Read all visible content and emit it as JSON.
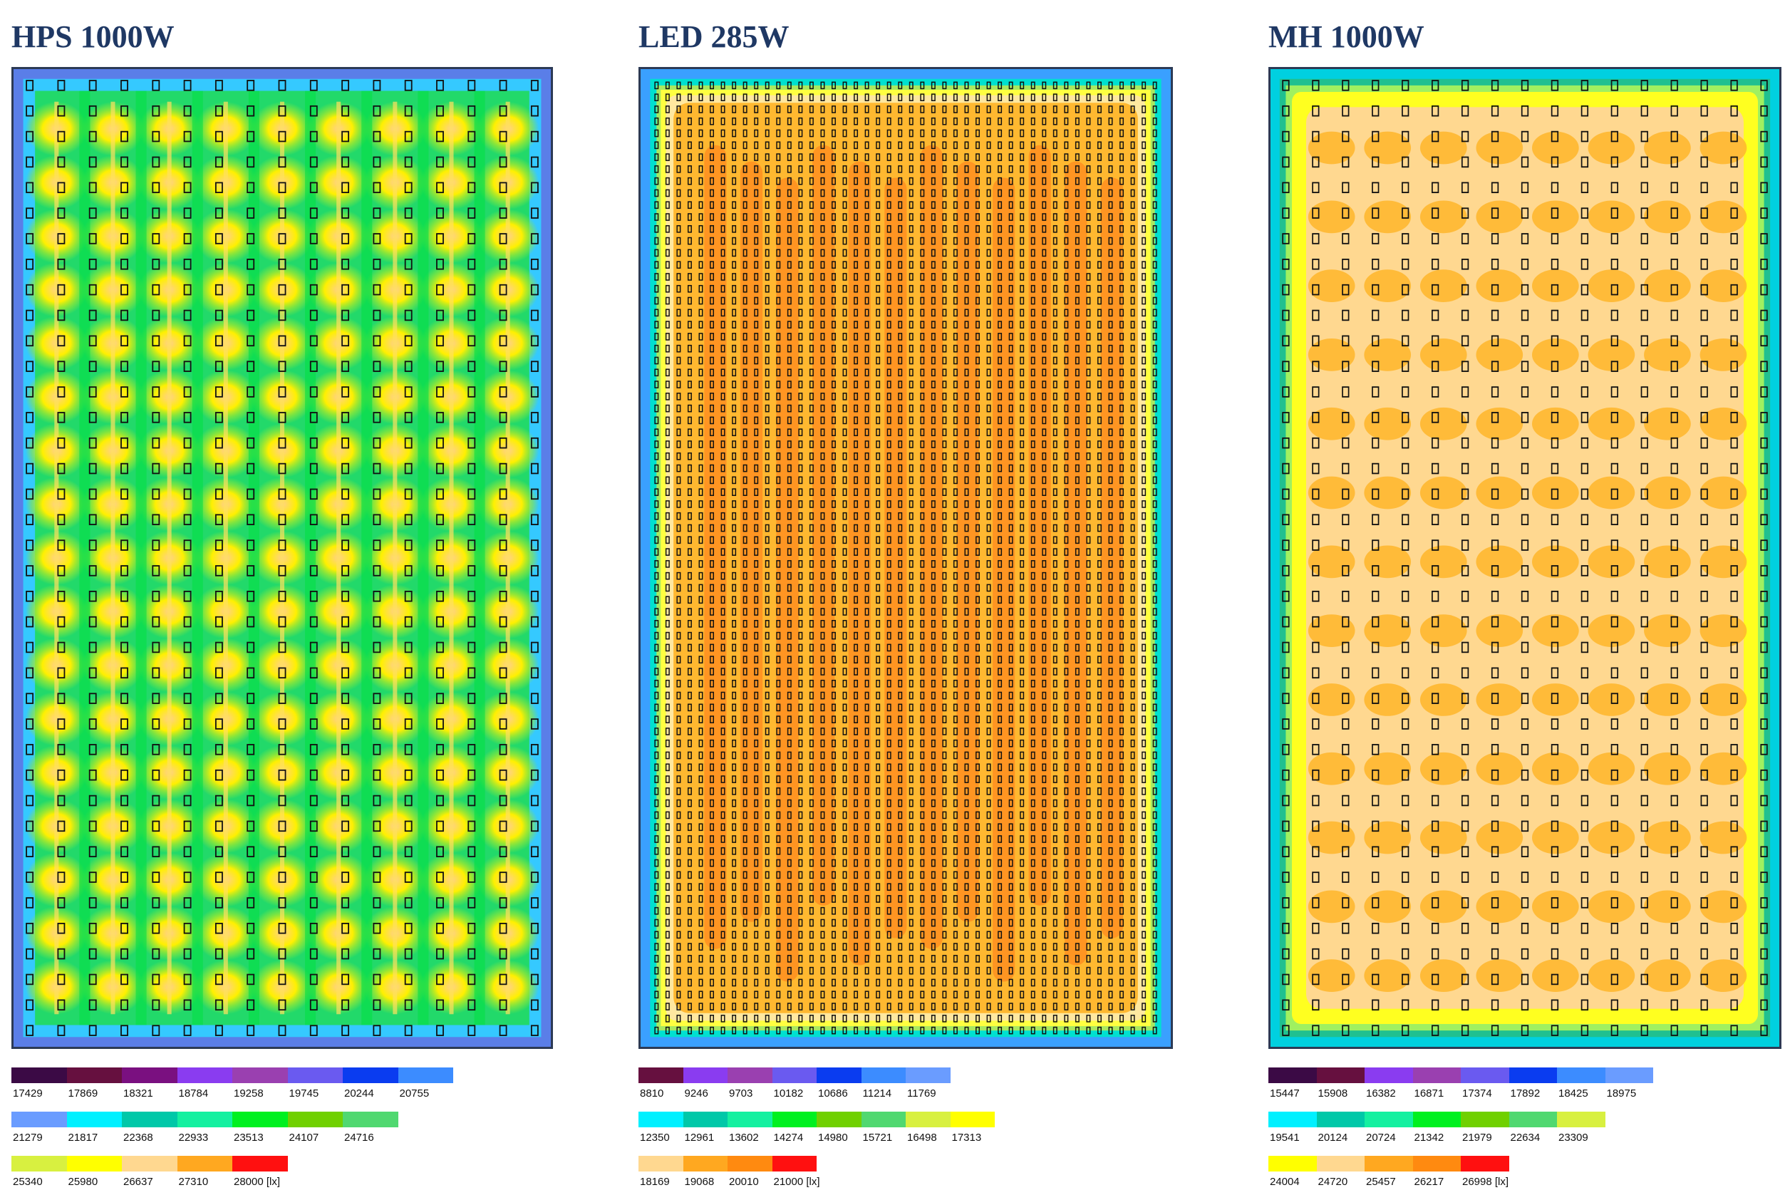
{
  "panels": [
    {
      "id": "hps",
      "title": "HPS 1000W",
      "pattern": "grid-spots",
      "colors": {
        "edge": "#5a7ee8",
        "edge2": "#35c9ff",
        "base": "#22d96a",
        "mid": "#8ee83a",
        "hot": "#fff000",
        "peak": "#ffd08a"
      },
      "legend_rows": [
        [
          {
            "color": "#3b0a45",
            "label": "17429"
          },
          {
            "color": "#66103f",
            "label": "17869"
          },
          {
            "color": "#7a1080",
            "label": "18321"
          },
          {
            "color": "#8a3cf0",
            "label": "18784"
          },
          {
            "color": "#9a40b0",
            "label": "19258"
          },
          {
            "color": "#6a5af0",
            "label": "19745"
          },
          {
            "color": "#0a3cf0",
            "label": "20244"
          },
          {
            "color": "#3c8cff",
            "label": "20755"
          }
        ],
        [
          {
            "color": "#6a9cff",
            "label": "21279"
          },
          {
            "color": "#00f0ff",
            "label": "21817"
          },
          {
            "color": "#00c8a8",
            "label": "22368"
          },
          {
            "color": "#14f0a0",
            "label": "22933"
          },
          {
            "color": "#00f020",
            "label": "23513"
          },
          {
            "color": "#70d000",
            "label": "24107"
          },
          {
            "color": "#50d870",
            "label": "24716"
          }
        ],
        [
          {
            "color": "#d8f040",
            "label": "25340"
          },
          {
            "color": "#ffff00",
            "label": "25980"
          },
          {
            "color": "#ffd890",
            "label": "26637"
          },
          {
            "color": "#ffa820",
            "label": "27310"
          },
          {
            "color": "#ff1010",
            "label": "28000 [lx]"
          }
        ]
      ]
    },
    {
      "id": "led",
      "title": "LED 285W",
      "pattern": "uniform-orange",
      "colors": {
        "edge": "#3aa0ff",
        "edge2": "#00e0d0",
        "base": "#ffb830",
        "mid": "#ff9e30",
        "hot": "#ff8a1e",
        "peak": "#ffe8a0"
      },
      "legend_rows": [
        [
          {
            "color": "#66103f",
            "label": "8810"
          },
          {
            "color": "#8a3cf0",
            "label": "9246"
          },
          {
            "color": "#9a40b0",
            "label": "9703"
          },
          {
            "color": "#6a5af0",
            "label": "10182"
          },
          {
            "color": "#0a3cf0",
            "label": "10686"
          },
          {
            "color": "#3c8cff",
            "label": "11214"
          },
          {
            "color": "#6a9cff",
            "label": "11769"
          }
        ],
        [
          {
            "color": "#00f0ff",
            "label": "12350"
          },
          {
            "color": "#00c8a8",
            "label": "12961"
          },
          {
            "color": "#14f0a0",
            "label": "13602"
          },
          {
            "color": "#00f020",
            "label": "14274"
          },
          {
            "color": "#70d000",
            "label": "14980"
          },
          {
            "color": "#50d870",
            "label": "15721"
          },
          {
            "color": "#d8f040",
            "label": "16498"
          },
          {
            "color": "#ffff00",
            "label": "17313"
          }
        ],
        [
          {
            "color": "#ffd890",
            "label": "18169"
          },
          {
            "color": "#ffa820",
            "label": "19068"
          },
          {
            "color": "#ff8a10",
            "label": "20010"
          },
          {
            "color": "#ff1010",
            "label": "21000 [lx]"
          }
        ]
      ]
    },
    {
      "id": "mh",
      "title": "MH 1000W",
      "pattern": "blobs",
      "colors": {
        "edge": "#00d0e0",
        "edge2": "#20c090",
        "base": "#ffd890",
        "mid": "#ffe8a0",
        "hot": "#ffb830",
        "peak": "#ffff20"
      },
      "legend_rows": [
        [
          {
            "color": "#3b0a45",
            "label": "15447"
          },
          {
            "color": "#66103f",
            "label": "15908"
          },
          {
            "color": "#8a3cf0",
            "label": "16382"
          },
          {
            "color": "#9a40b0",
            "label": "16871"
          },
          {
            "color": "#6a5af0",
            "label": "17374"
          },
          {
            "color": "#0a3cf0",
            "label": "17892"
          },
          {
            "color": "#3c8cff",
            "label": "18425"
          },
          {
            "color": "#6a9cff",
            "label": "18975"
          }
        ],
        [
          {
            "color": "#00f0ff",
            "label": "19541"
          },
          {
            "color": "#00c8a8",
            "label": "20124"
          },
          {
            "color": "#14f0a0",
            "label": "20724"
          },
          {
            "color": "#00f020",
            "label": "21342"
          },
          {
            "color": "#70d000",
            "label": "21979"
          },
          {
            "color": "#50d870",
            "label": "22634"
          },
          {
            "color": "#d8f040",
            "label": "23309"
          }
        ],
        [
          {
            "color": "#ffff00",
            "label": "24004"
          },
          {
            "color": "#ffd890",
            "label": "24720"
          },
          {
            "color": "#ffa820",
            "label": "25457"
          },
          {
            "color": "#ff8a10",
            "label": "26217"
          },
          {
            "color": "#ff1010",
            "label": "26998 [lx]"
          }
        ]
      ]
    }
  ]
}
